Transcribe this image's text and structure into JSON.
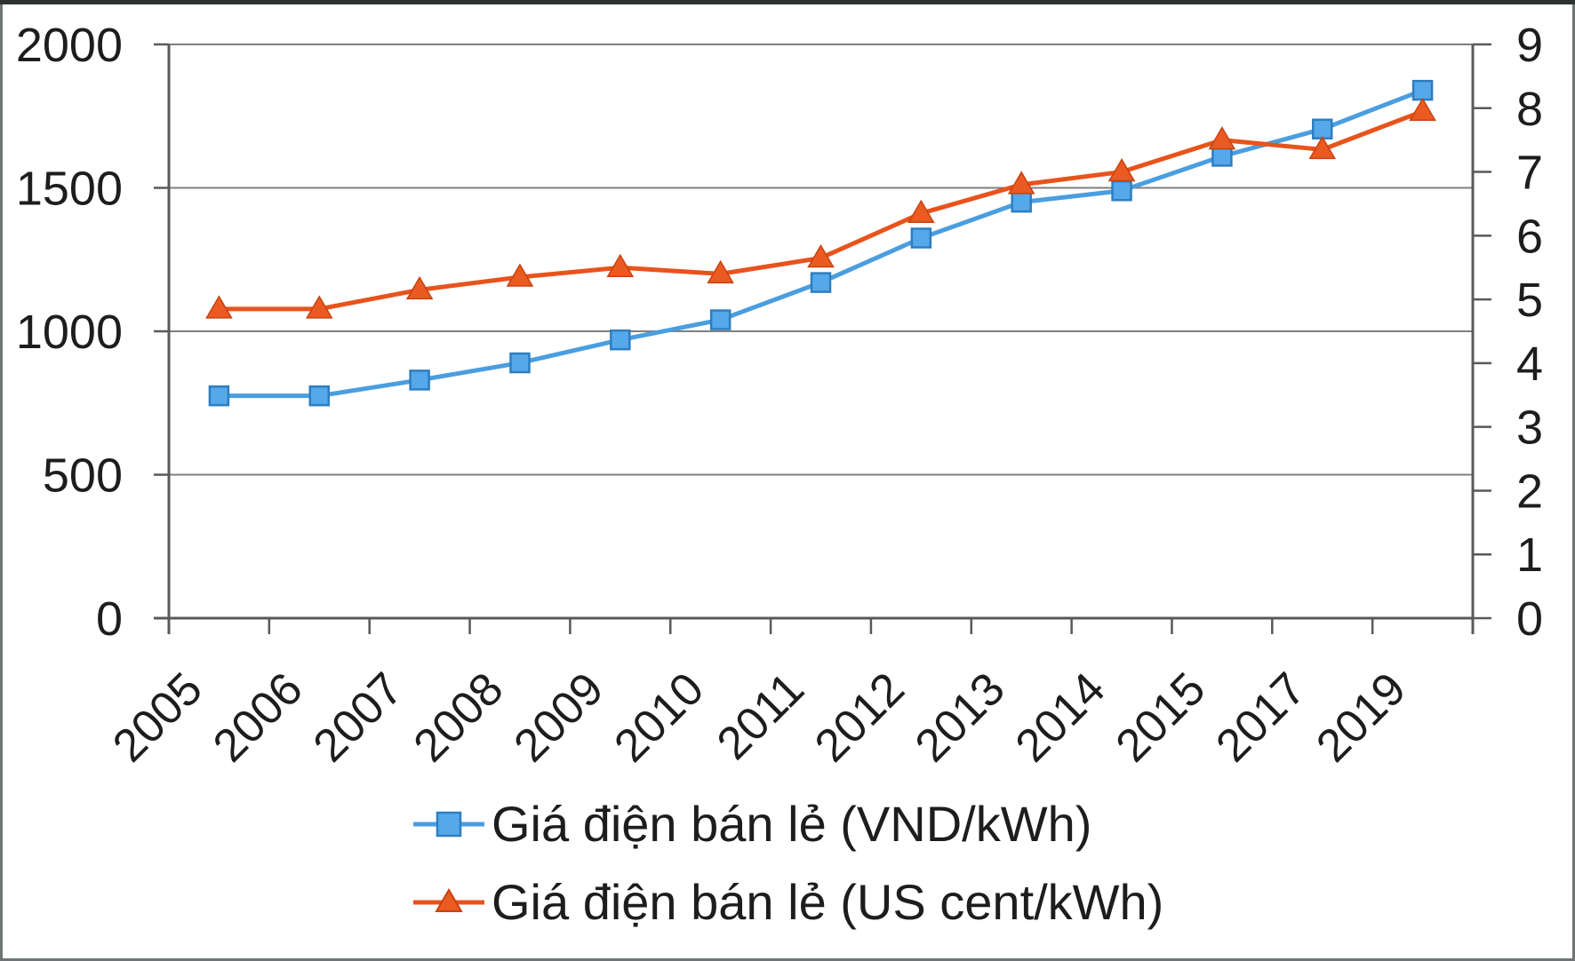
{
  "chart_data": {
    "type": "line",
    "title": "",
    "categories": [
      "2005",
      "2006",
      "2007",
      "2008",
      "2009",
      "2010",
      "2011",
      "2012",
      "2013",
      "2014",
      "2015",
      "2017",
      "2019"
    ],
    "series": [
      {
        "name": "Giá điện bán lẻ (VND/kWh)",
        "axis": "left",
        "marker": "square",
        "values": [
          775,
          775,
          830,
          890,
          970,
          1040,
          1170,
          1325,
          1450,
          1490,
          1610,
          1705,
          1840
        ]
      },
      {
        "name": "Giá điện bán lẻ (US cent/kWh)",
        "axis": "right",
        "marker": "triangle",
        "values": [
          4.85,
          4.85,
          5.15,
          5.35,
          5.5,
          5.4,
          5.65,
          6.35,
          6.8,
          7.0,
          7.5,
          7.35,
          7.95
        ]
      }
    ],
    "left_axis": {
      "min": 0,
      "max": 2000,
      "tick_labels": [
        "0",
        "500",
        "1000",
        "1500",
        "2000"
      ],
      "tick_values": [
        0,
        500,
        1000,
        1500,
        2000
      ]
    },
    "right_axis": {
      "min": 0,
      "max": 9,
      "tick_labels": [
        "0",
        "1",
        "2",
        "3",
        "4",
        "5",
        "6",
        "7",
        "8",
        "9"
      ],
      "tick_values": [
        0,
        1,
        2,
        3,
        4,
        5,
        6,
        7,
        8,
        9
      ]
    },
    "grid": "horizontal",
    "legend_position": "bottom"
  },
  "colors": {
    "blue_line": "#4A9EE0",
    "blue_marker_fill": "#55A8EA",
    "blue_marker_stroke": "#2E7EC0",
    "orange_line": "#E8531C",
    "orange_marker_fill": "#EB5A21",
    "orange_marker_stroke": "#C64310",
    "gridline": "#7F7F7F",
    "axis_line": "#595959",
    "tick_text": "#1D1D1D",
    "figure_border": "#6E7575",
    "figure_border_top": "#2E3233"
  }
}
